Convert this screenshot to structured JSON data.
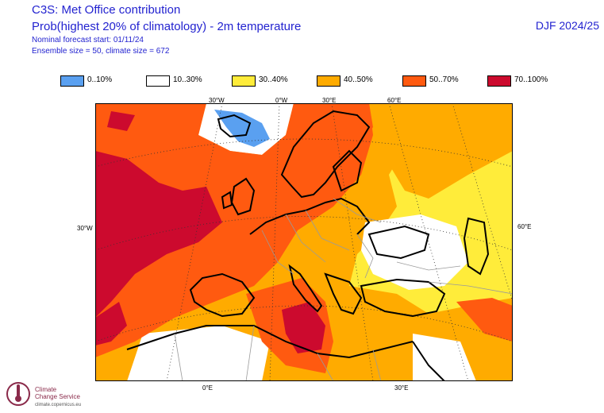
{
  "header": {
    "title": "C3S: Met Office contribution",
    "subtitle": "Prob(highest 20% of climatology) - 2m temperature",
    "forecast_start": "Nominal forecast start: 01/11/24",
    "ensemble": "Ensemble size = 50, climate size = 672",
    "season": "DJF 2024/25"
  },
  "legend": [
    {
      "label": "0..10%",
      "color": "#5aa0f0"
    },
    {
      "label": "10..30%",
      "color": "#ffffff"
    },
    {
      "label": "30..40%",
      "color": "#ffec3a"
    },
    {
      "label": "40..50%",
      "color": "#ffab00"
    },
    {
      "label": "50..70%",
      "color": "#ff5a10"
    },
    {
      "label": "70..100%",
      "color": "#cc0a2e"
    }
  ],
  "map": {
    "top_ticks": [
      "30°W",
      "0°W",
      "30°E",
      "60°E"
    ],
    "bottom_ticks": [
      "0°E",
      "30°E"
    ],
    "left_tick": "30°W",
    "right_tick": "60°E"
  },
  "logo": {
    "line1": "Climate",
    "line2": "Change Service",
    "url": "climate.copernicus.eu"
  }
}
